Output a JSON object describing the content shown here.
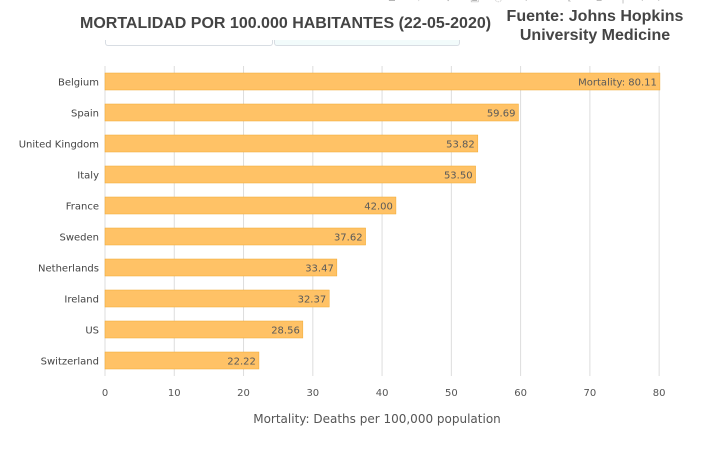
{
  "title": "MORTALIDAD POR 100.000 HABITANTES  (22-05-2020)",
  "source": "Fuente: Johns Hopkins University Medicine",
  "toolbar": {
    "icons": [
      "camera-icon",
      "zoom-icon",
      "pan-icon",
      "box-select-icon",
      "lasso-icon",
      "zoom-in-icon",
      "zoom-out-icon",
      "autoscale-icon",
      "reset-axes-icon",
      "spike-lines-icon",
      "hover-closest-icon",
      "hover-compare-icon"
    ]
  },
  "colors": {
    "bar_fill": "#ffc266",
    "bar_stroke": "#f0a830",
    "grid": "#dddddd"
  },
  "chart_data": {
    "type": "bar",
    "orientation": "horizontal",
    "categories": [
      "Belgium",
      "Spain",
      "United Kingdom",
      "Italy",
      "France",
      "Sweden",
      "Netherlands",
      "Ireland",
      "US",
      "Switzerland"
    ],
    "values": [
      80.11,
      59.69,
      53.82,
      53.5,
      42.0,
      37.62,
      33.47,
      32.37,
      28.56,
      22.22
    ],
    "data_labels": [
      "Mortality: 80.11",
      "59.69",
      "53.82",
      "53.50",
      "42.00",
      "37.62",
      "33.47",
      "32.37",
      "28.56",
      "22.22"
    ],
    "xlabel": "Mortality: Deaths per 100,000 population",
    "ylabel": "",
    "xlim": [
      0,
      82
    ],
    "xticks": [
      0,
      10,
      20,
      30,
      40,
      50,
      60,
      70,
      80
    ],
    "grid": true
  }
}
